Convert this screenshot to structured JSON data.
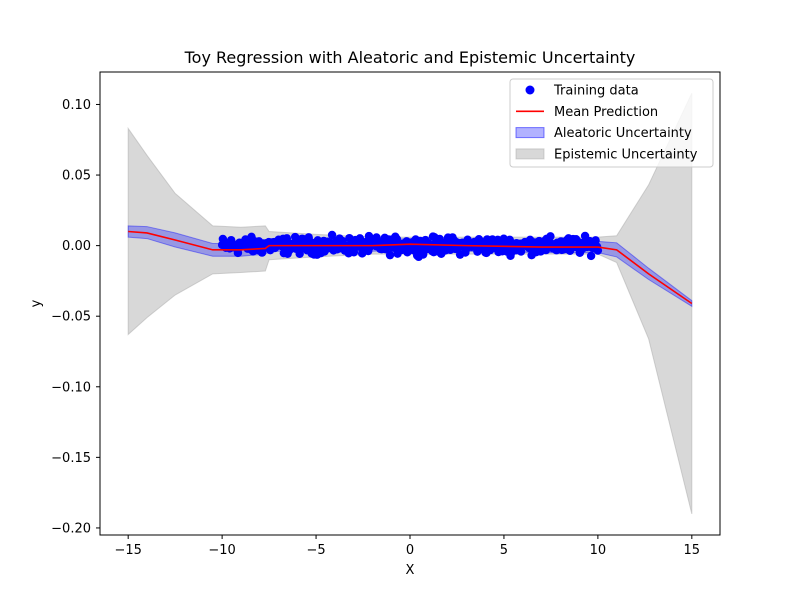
{
  "chart_data": {
    "type": "scatter",
    "title": "Toy Regression with Aleatoric and Epistemic Uncertainty",
    "xlabel": "X",
    "ylabel": "y",
    "xlim": [
      -16.5,
      16.5
    ],
    "ylim": [
      -0.205,
      0.123
    ],
    "xticks": [
      -15,
      -10,
      -5,
      0,
      5,
      10,
      15
    ],
    "xtick_labels": [
      "−15",
      "−10",
      "−5",
      "0",
      "5",
      "10",
      "15"
    ],
    "yticks": [
      -0.2,
      -0.15,
      -0.1,
      -0.05,
      0.0,
      0.05,
      0.1
    ],
    "ytick_labels": [
      "−0.20",
      "−0.15",
      "−0.10",
      "−0.05",
      "0.00",
      "0.05",
      "0.10"
    ],
    "grid": false,
    "legend_position": "top-right",
    "series": [
      {
        "name": "Training data",
        "kind": "scatter",
        "color": "#0000ff",
        "x_range": [
          -10,
          10
        ],
        "y_center": 0.0,
        "y_spread": 0.004
      },
      {
        "name": "Mean Prediction",
        "kind": "line",
        "color": "#ff0000",
        "x": [
          -15,
          -14,
          -12.5,
          -10.5,
          -9,
          -7.7,
          -7.5,
          -5,
          -2,
          0,
          3,
          7,
          10,
          11,
          12.7,
          15
        ],
        "y": [
          0.01,
          0.009,
          0.004,
          -0.003,
          -0.003,
          -0.002,
          0.0,
          0.0,
          0.0,
          0.001,
          0.0,
          -0.001,
          -0.001,
          -0.003,
          -0.02,
          -0.041
        ]
      },
      {
        "name": "Aleatoric Uncertainty",
        "kind": "band",
        "color": "#0000ff",
        "x": [
          -15,
          -14,
          -12.5,
          -10.5,
          -9,
          -7.7,
          -7.5,
          -5,
          -2,
          0,
          3,
          7,
          10,
          11,
          12.7,
          15
        ],
        "upper": [
          0.014,
          0.0135,
          0.009,
          0.0015,
          0.0015,
          0.002,
          0.004,
          0.004,
          0.004,
          0.005,
          0.004,
          0.003,
          0.003,
          0.002,
          -0.016,
          -0.039
        ],
        "lower": [
          0.006,
          0.005,
          -0.001,
          -0.0075,
          -0.0075,
          -0.006,
          -0.004,
          -0.004,
          -0.004,
          -0.003,
          -0.004,
          -0.005,
          -0.005,
          -0.008,
          -0.024,
          -0.043
        ]
      },
      {
        "name": "Epistemic Uncertainty",
        "kind": "band",
        "color": "#a9a9a9",
        "x": [
          -15,
          -14,
          -12.5,
          -10.5,
          -9,
          -7.7,
          -7.5,
          -5,
          -2,
          0,
          3,
          7,
          10,
          11,
          12.7,
          15
        ],
        "upper": [
          0.083,
          0.064,
          0.037,
          0.014,
          0.013,
          0.014,
          0.01,
          0.008,
          0.006,
          0.006,
          0.006,
          0.006,
          0.006,
          0.007,
          0.043,
          0.108
        ],
        "lower": [
          -0.063,
          -0.051,
          -0.035,
          -0.02,
          -0.019,
          -0.018,
          -0.01,
          -0.008,
          -0.006,
          -0.006,
          -0.006,
          -0.006,
          -0.006,
          -0.012,
          -0.066,
          -0.19
        ]
      }
    ]
  }
}
